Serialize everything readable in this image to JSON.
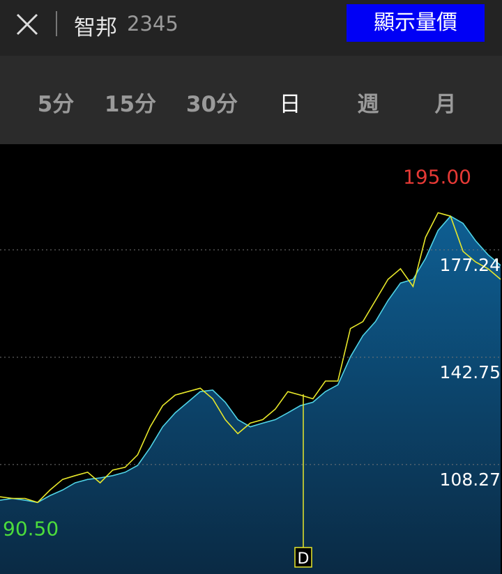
{
  "header": {
    "title": "智邦",
    "code": "2345",
    "button": "顯示量價"
  },
  "tabs": {
    "items": [
      "5分",
      "15分",
      "30分",
      "日",
      "週",
      "月"
    ],
    "active": 3
  },
  "chart_data": {
    "type": "area",
    "ylim": [
      73.1,
      211.0
    ],
    "yticks": [
      108.27,
      142.75,
      177.24
    ],
    "grid": true,
    "series": [
      {
        "color": "#4fd3e6",
        "fill": true,
        "values": [
          96.8,
          97.4,
          96.8,
          96.1,
          98.3,
          100.1,
          102.4,
          103.5,
          104.0,
          104.7,
          105.8,
          108.0,
          113.7,
          120.4,
          124.9,
          128.3,
          131.7,
          132.2,
          128.3,
          122.7,
          120.4,
          121.6,
          122.7,
          124.9,
          127.2,
          128.3,
          131.7,
          133.9,
          142.9,
          149.7,
          154.2,
          161.0,
          166.6,
          167.8,
          174.5,
          183.5,
          188.1,
          185.8,
          180.2,
          175.7,
          172.3
        ]
      },
      {
        "color": "#e8e82a",
        "fill": false,
        "values": [
          97.9,
          97.4,
          97.4,
          96.1,
          100.1,
          103.5,
          104.7,
          105.8,
          102.4,
          106.5,
          107.4,
          111.4,
          120.4,
          127.2,
          130.6,
          131.7,
          132.8,
          129.4,
          122.7,
          118.2,
          121.6,
          122.7,
          126.1,
          131.7,
          130.6,
          129.4,
          135.1,
          135.1,
          152.0,
          154.2,
          161.0,
          167.8,
          171.2,
          165.5,
          181.3,
          189.2,
          188.1,
          176.8,
          173.4,
          171.2,
          167.8
        ]
      }
    ],
    "annotations": [
      {
        "value": 195.0,
        "label": "195.00",
        "color": "#e53935"
      },
      {
        "value": 90.5,
        "label": "90.50",
        "color": "#4cdc3c"
      }
    ],
    "marker": "D"
  }
}
